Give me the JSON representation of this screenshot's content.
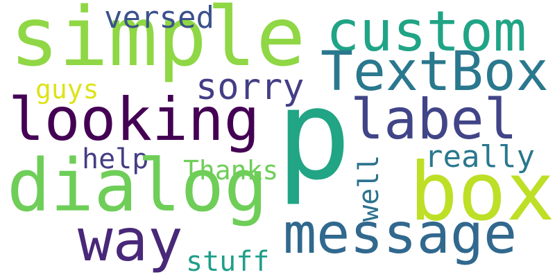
{
  "word_cloud": {
    "words": [
      {
        "id": "simple",
        "text": "simple",
        "color": "#8fd744"
      },
      {
        "id": "custom",
        "text": "custom",
        "color": "#20a486"
      },
      {
        "id": "textbox",
        "text": "TextBox",
        "color": "#2a788e"
      },
      {
        "id": "versed",
        "text": "versed",
        "color": "#3b528b"
      },
      {
        "id": "sorry",
        "text": "sorry",
        "color": "#433e85"
      },
      {
        "id": "guys",
        "text": "guys",
        "color": "#dde318"
      },
      {
        "id": "looking",
        "text": "looking",
        "color": "#440154"
      },
      {
        "id": "p",
        "text": "p",
        "color": "#21a585"
      },
      {
        "id": "label",
        "text": "label",
        "color": "#414487"
      },
      {
        "id": "help",
        "text": "help",
        "color": "#433e85"
      },
      {
        "id": "thanks",
        "text": "Thanks",
        "color": "#6ece58"
      },
      {
        "id": "really",
        "text": "really",
        "color": "#2a788e"
      },
      {
        "id": "dialog",
        "text": "dialog",
        "color": "#6ece58"
      },
      {
        "id": "well",
        "text": "well",
        "color": "#2c728e"
      },
      {
        "id": "box",
        "text": "box",
        "color": "#bddf26"
      },
      {
        "id": "way",
        "text": "way",
        "color": "#482878"
      },
      {
        "id": "message",
        "text": "message",
        "color": "#31688e"
      },
      {
        "id": "stuff",
        "text": "stuff",
        "color": "#1f9e89"
      }
    ]
  }
}
